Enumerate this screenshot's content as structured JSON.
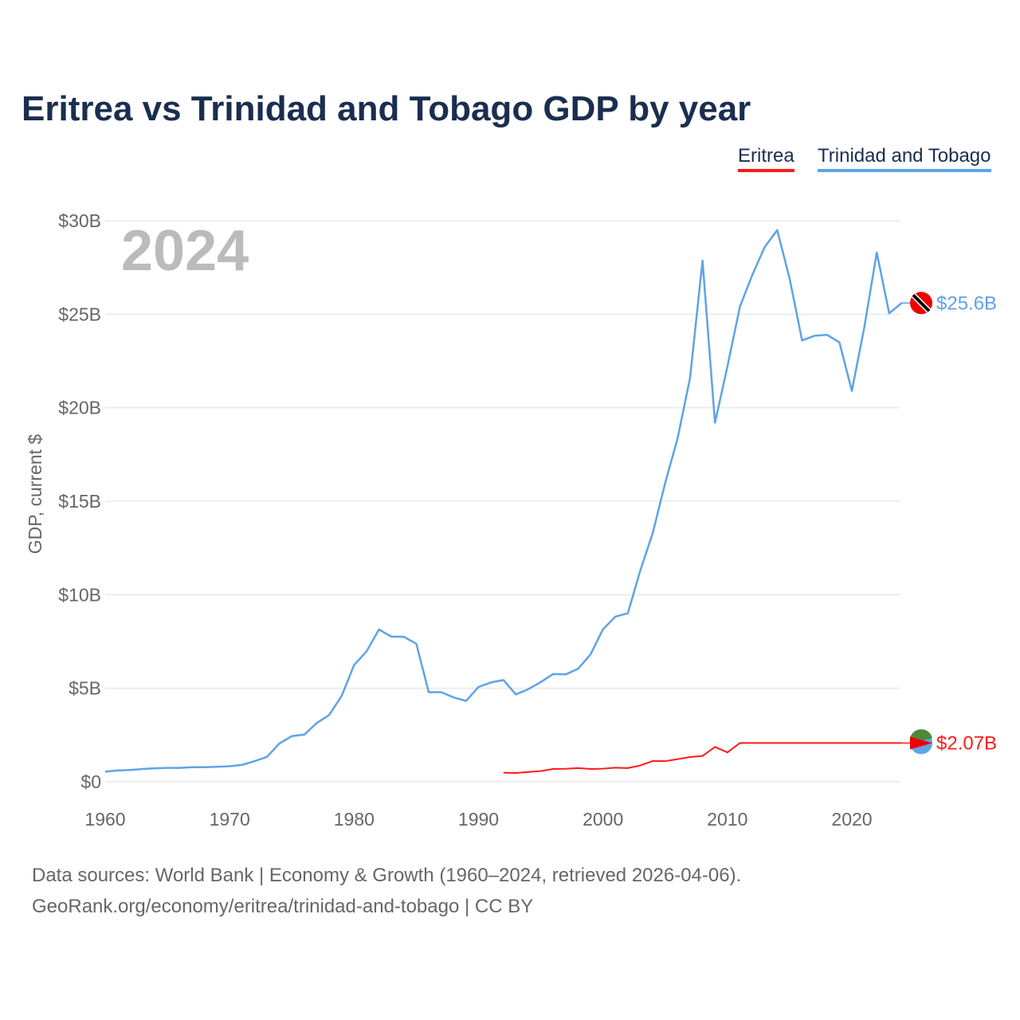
{
  "chart_data": {
    "type": "line",
    "title": "Eritrea vs Trinidad and Tobago GDP by year",
    "ylabel": "GDP, current $",
    "xlabel": "",
    "year_label": "2024",
    "xlim": [
      1960,
      2024
    ],
    "ylim": [
      0,
      30
    ],
    "x_ticks": [
      1960,
      1970,
      1980,
      1990,
      2000,
      2010,
      2020
    ],
    "x_tick_labels": [
      "1960",
      "1970",
      "1980",
      "1990",
      "2000",
      "2010",
      "2020"
    ],
    "y_ticks": [
      0,
      5,
      10,
      15,
      20,
      25,
      30
    ],
    "y_tick_labels": [
      "$0",
      "$5B",
      "$10B",
      "$15B",
      "$20B",
      "$25B",
      "$30B"
    ],
    "grid": true,
    "legend_placement": "top-right",
    "series": [
      {
        "name": "Eritrea",
        "color": "#ff1a1a",
        "end_label": "$2.07B",
        "start_year": 1992,
        "values": [
          0.48,
          0.47,
          0.52,
          0.57,
          0.68,
          0.69,
          0.73,
          0.68,
          0.7,
          0.75,
          0.73,
          0.87,
          1.11,
          1.1,
          1.21,
          1.32,
          1.38,
          1.86,
          1.57,
          2.07,
          2.07,
          2.07,
          2.07,
          2.07,
          2.07,
          2.07,
          2.07,
          2.07,
          2.07,
          2.07,
          2.07,
          2.07,
          2.07
        ]
      },
      {
        "name": "Trinidad and Tobago",
        "color": "#5ea3e8",
        "end_label": "$25.6B",
        "start_year": 1960,
        "values": [
          0.54,
          0.6,
          0.63,
          0.68,
          0.72,
          0.74,
          0.74,
          0.78,
          0.78,
          0.8,
          0.83,
          0.9,
          1.1,
          1.33,
          2.05,
          2.44,
          2.52,
          3.14,
          3.57,
          4.59,
          6.24,
          6.97,
          8.14,
          7.76,
          7.75,
          7.38,
          4.79,
          4.79,
          4.51,
          4.32,
          5.07,
          5.31,
          5.44,
          4.67,
          4.95,
          5.33,
          5.76,
          5.74,
          6.04,
          6.81,
          8.15,
          8.83,
          9.01,
          11.3,
          13.3,
          15.98,
          18.37,
          21.6,
          27.87,
          19.2,
          22.2,
          25.4,
          27.1,
          28.6,
          29.5,
          26.9,
          23.6,
          23.85,
          23.9,
          23.5,
          20.9,
          24.3,
          28.3,
          25.05,
          25.6
        ]
      }
    ]
  },
  "footer": {
    "line1": "Data sources: World Bank | Economy & Growth (1960–2024, retrieved 2026-04-06).",
    "line2": "GeoRank.org/economy/eritrea/trinidad-and-tobago | CC BY"
  }
}
